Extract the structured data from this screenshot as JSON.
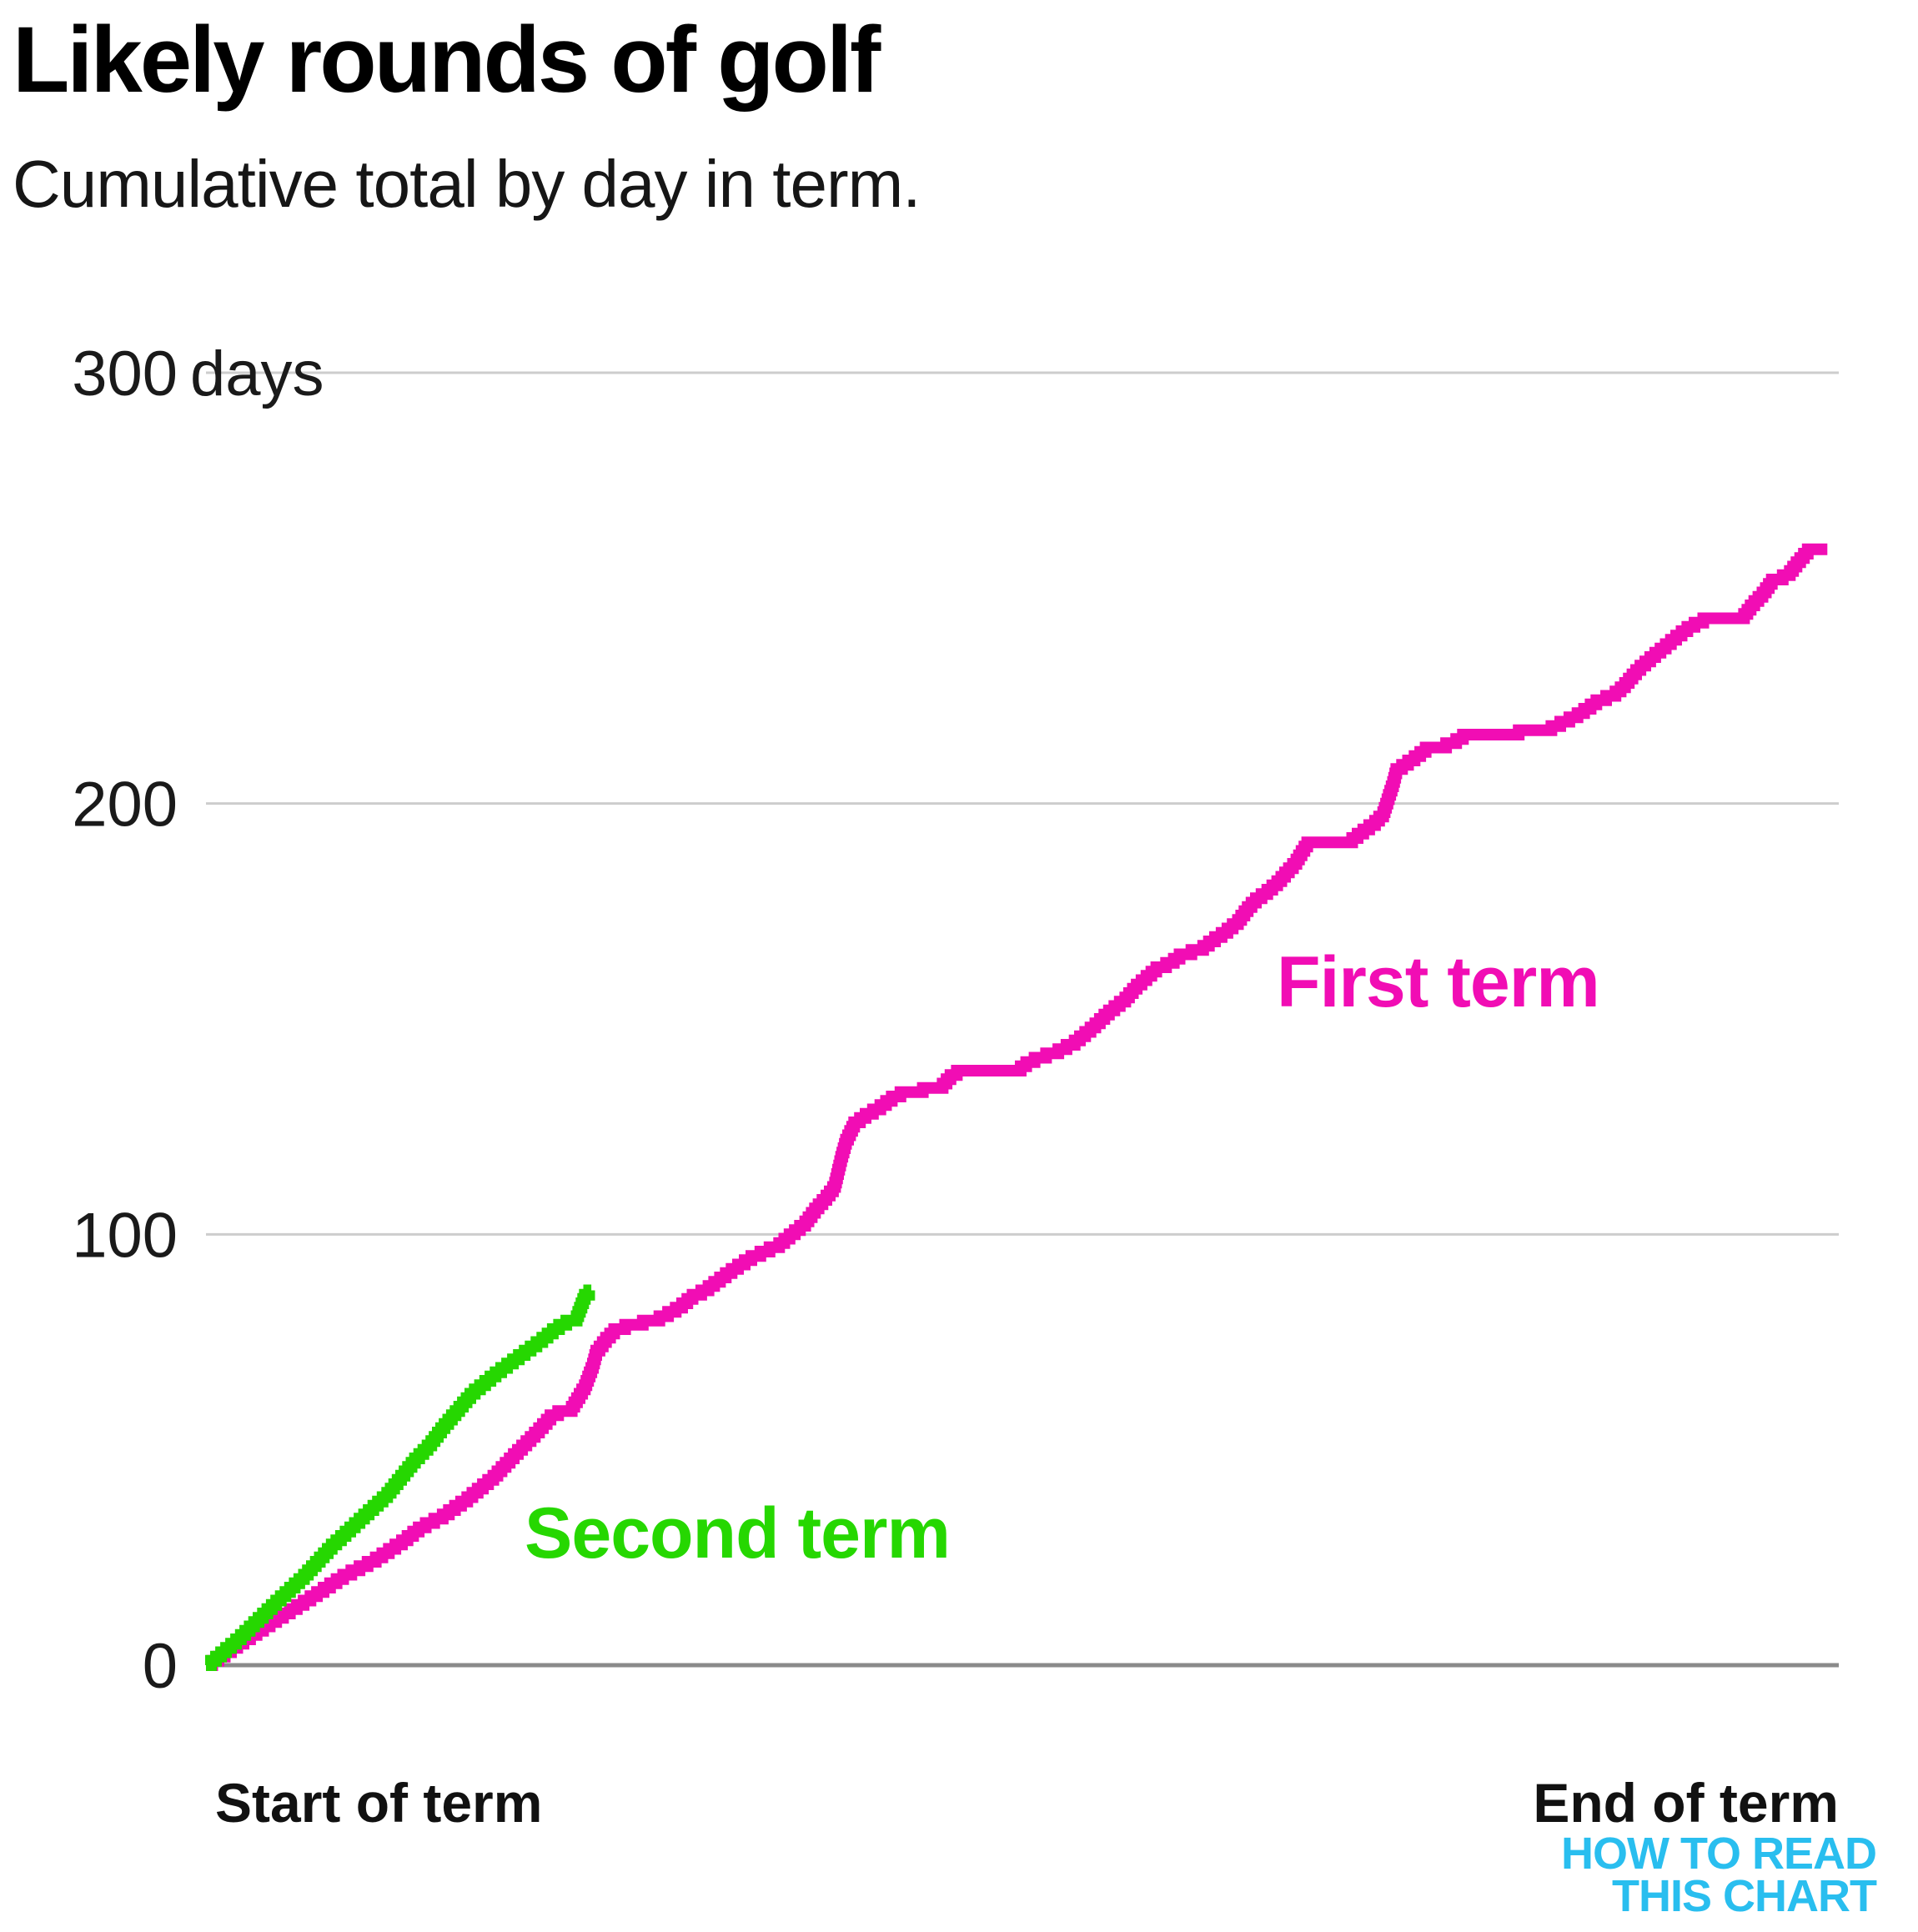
{
  "title": "Likely rounds of golf",
  "subtitle": "Cumulative total by day in term.",
  "logo": {
    "line1": "HOW TO READ",
    "line2": "THIS CHART"
  },
  "colors": {
    "first_term": "#F10DB4",
    "second_term": "#26D701",
    "grid": "#CDCDCD",
    "baseline": "#8A8A8A",
    "text": "#1A1A1A",
    "logo": "#29BEEF"
  },
  "chart_data": {
    "type": "line",
    "title": "Likely rounds of golf",
    "subtitle": "Cumulative total by day in term.",
    "xlabel_left": "Start of term",
    "xlabel_right": "End of term",
    "ylabel": "days",
    "ylim": [
      0,
      300
    ],
    "grid": "horizontal",
    "x_axis": {
      "unit": "fraction of term",
      "min": 0,
      "max": 1
    },
    "yticks": [
      {
        "value": 300,
        "label": "300",
        "suffix": " days"
      },
      {
        "value": 200,
        "label": "200",
        "suffix": ""
      },
      {
        "value": 100,
        "label": "100",
        "suffix": ""
      },
      {
        "value": 0,
        "label": "0",
        "suffix": ""
      }
    ],
    "series": [
      {
        "name": "First term",
        "color_key": "first_term",
        "label": {
          "text": "First term",
          "f": 0.656,
          "days": 152.9
        },
        "points": [
          [
            0,
            0
          ],
          [
            0.023,
            6
          ],
          [
            0.043,
            11
          ],
          [
            0.064,
            16
          ],
          [
            0.084,
            21
          ],
          [
            0.104,
            25
          ],
          [
            0.12,
            29
          ],
          [
            0.132,
            32.5
          ],
          [
            0.145,
            35
          ],
          [
            0.16,
            39
          ],
          [
            0.176,
            44
          ],
          [
            0.191,
            50
          ],
          [
            0.204,
            55
          ],
          [
            0.211,
            58
          ],
          [
            0.218,
            59.5
          ],
          [
            0.224,
            60
          ],
          [
            0.232,
            65
          ],
          [
            0.237,
            70
          ],
          [
            0.239,
            73
          ],
          [
            0.245,
            76
          ],
          [
            0.25,
            78
          ],
          [
            0.26,
            79.5
          ],
          [
            0.275,
            80.5
          ],
          [
            0.283,
            82
          ],
          [
            0.29,
            83.5
          ],
          [
            0.298,
            86
          ],
          [
            0.306,
            87.5
          ],
          [
            0.313,
            89.5
          ],
          [
            0.323,
            92.3
          ],
          [
            0.334,
            95
          ],
          [
            0.344,
            96.8
          ],
          [
            0.351,
            98
          ],
          [
            0.359,
            100.5
          ],
          [
            0.367,
            103
          ],
          [
            0.374,
            106.5
          ],
          [
            0.38,
            109
          ],
          [
            0.385,
            111.5
          ],
          [
            0.389,
            118
          ],
          [
            0.392,
            122
          ],
          [
            0.397,
            126
          ],
          [
            0.404,
            128
          ],
          [
            0.413,
            130
          ],
          [
            0.42,
            132
          ],
          [
            0.428,
            133.5
          ],
          [
            0.45,
            134.5
          ],
          [
            0.456,
            137
          ],
          [
            0.461,
            138.3
          ],
          [
            0.498,
            138.7
          ],
          [
            0.504,
            140.5
          ],
          [
            0.513,
            141.8
          ],
          [
            0.522,
            143
          ],
          [
            0.532,
            145
          ],
          [
            0.543,
            148.4
          ],
          [
            0.553,
            152
          ],
          [
            0.563,
            155
          ],
          [
            0.57,
            158
          ],
          [
            0.582,
            162
          ],
          [
            0.591,
            163.5
          ],
          [
            0.598,
            165.5
          ],
          [
            0.609,
            166.5
          ],
          [
            0.616,
            168.5
          ],
          [
            0.624,
            170.5
          ],
          [
            0.632,
            173
          ],
          [
            0.639,
            176.5
          ],
          [
            0.643,
            178
          ],
          [
            0.65,
            180
          ],
          [
            0.657,
            182.3
          ],
          [
            0.662,
            184.5
          ],
          [
            0.667,
            186.5
          ],
          [
            0.671,
            189
          ],
          [
            0.675,
            191.3
          ],
          [
            0.701,
            191.7
          ],
          [
            0.707,
            193.5
          ],
          [
            0.716,
            196
          ],
          [
            0.721,
            198
          ],
          [
            0.727,
            205
          ],
          [
            0.729,
            208
          ],
          [
            0.735,
            209.7
          ],
          [
            0.741,
            211.2
          ],
          [
            0.747,
            213
          ],
          [
            0.762,
            214.2
          ],
          [
            0.768,
            215.5
          ],
          [
            0.772,
            216.6
          ],
          [
            0.82,
            217.2
          ],
          [
            0.827,
            218.6
          ],
          [
            0.833,
            219.6
          ],
          [
            0.84,
            221
          ],
          [
            0.848,
            223
          ],
          [
            0.854,
            224.7
          ],
          [
            0.861,
            225.3
          ],
          [
            0.868,
            227.5
          ],
          [
            0.877,
            231.5
          ],
          [
            0.886,
            234.5
          ],
          [
            0.894,
            237
          ],
          [
            0.902,
            239.5
          ],
          [
            0.909,
            241.5
          ],
          [
            0.917,
            243
          ],
          [
            0.941,
            243.5
          ],
          [
            0.947,
            246.5
          ],
          [
            0.954,
            249.3
          ],
          [
            0.959,
            252
          ],
          [
            0.969,
            253.5
          ],
          [
            0.973,
            255.5
          ],
          [
            0.977,
            257.3
          ],
          [
            0.981,
            259
          ],
          [
            0.993,
            259.3
          ]
        ]
      },
      {
        "name": "Second term",
        "color_key": "second_term",
        "label": {
          "text": "Second term",
          "f": 0.195,
          "days": 25
        },
        "points": [
          [
            0,
            0
          ],
          [
            0.02,
            6.5
          ],
          [
            0.043,
            15
          ],
          [
            0.06,
            21
          ],
          [
            0.077,
            28
          ],
          [
            0.094,
            34
          ],
          [
            0.111,
            40
          ],
          [
            0.128,
            48
          ],
          [
            0.137,
            51.5
          ],
          [
            0.145,
            55.5
          ],
          [
            0.154,
            59.5
          ],
          [
            0.163,
            63.5
          ],
          [
            0.171,
            66
          ],
          [
            0.179,
            68.5
          ],
          [
            0.188,
            71
          ],
          [
            0.197,
            73.5
          ],
          [
            0.206,
            76
          ],
          [
            0.214,
            78.5
          ],
          [
            0.222,
            80.3
          ],
          [
            0.227,
            81
          ],
          [
            0.229,
            83
          ],
          [
            0.232,
            86
          ],
          [
            0.236,
            87.5
          ]
        ]
      }
    ]
  }
}
